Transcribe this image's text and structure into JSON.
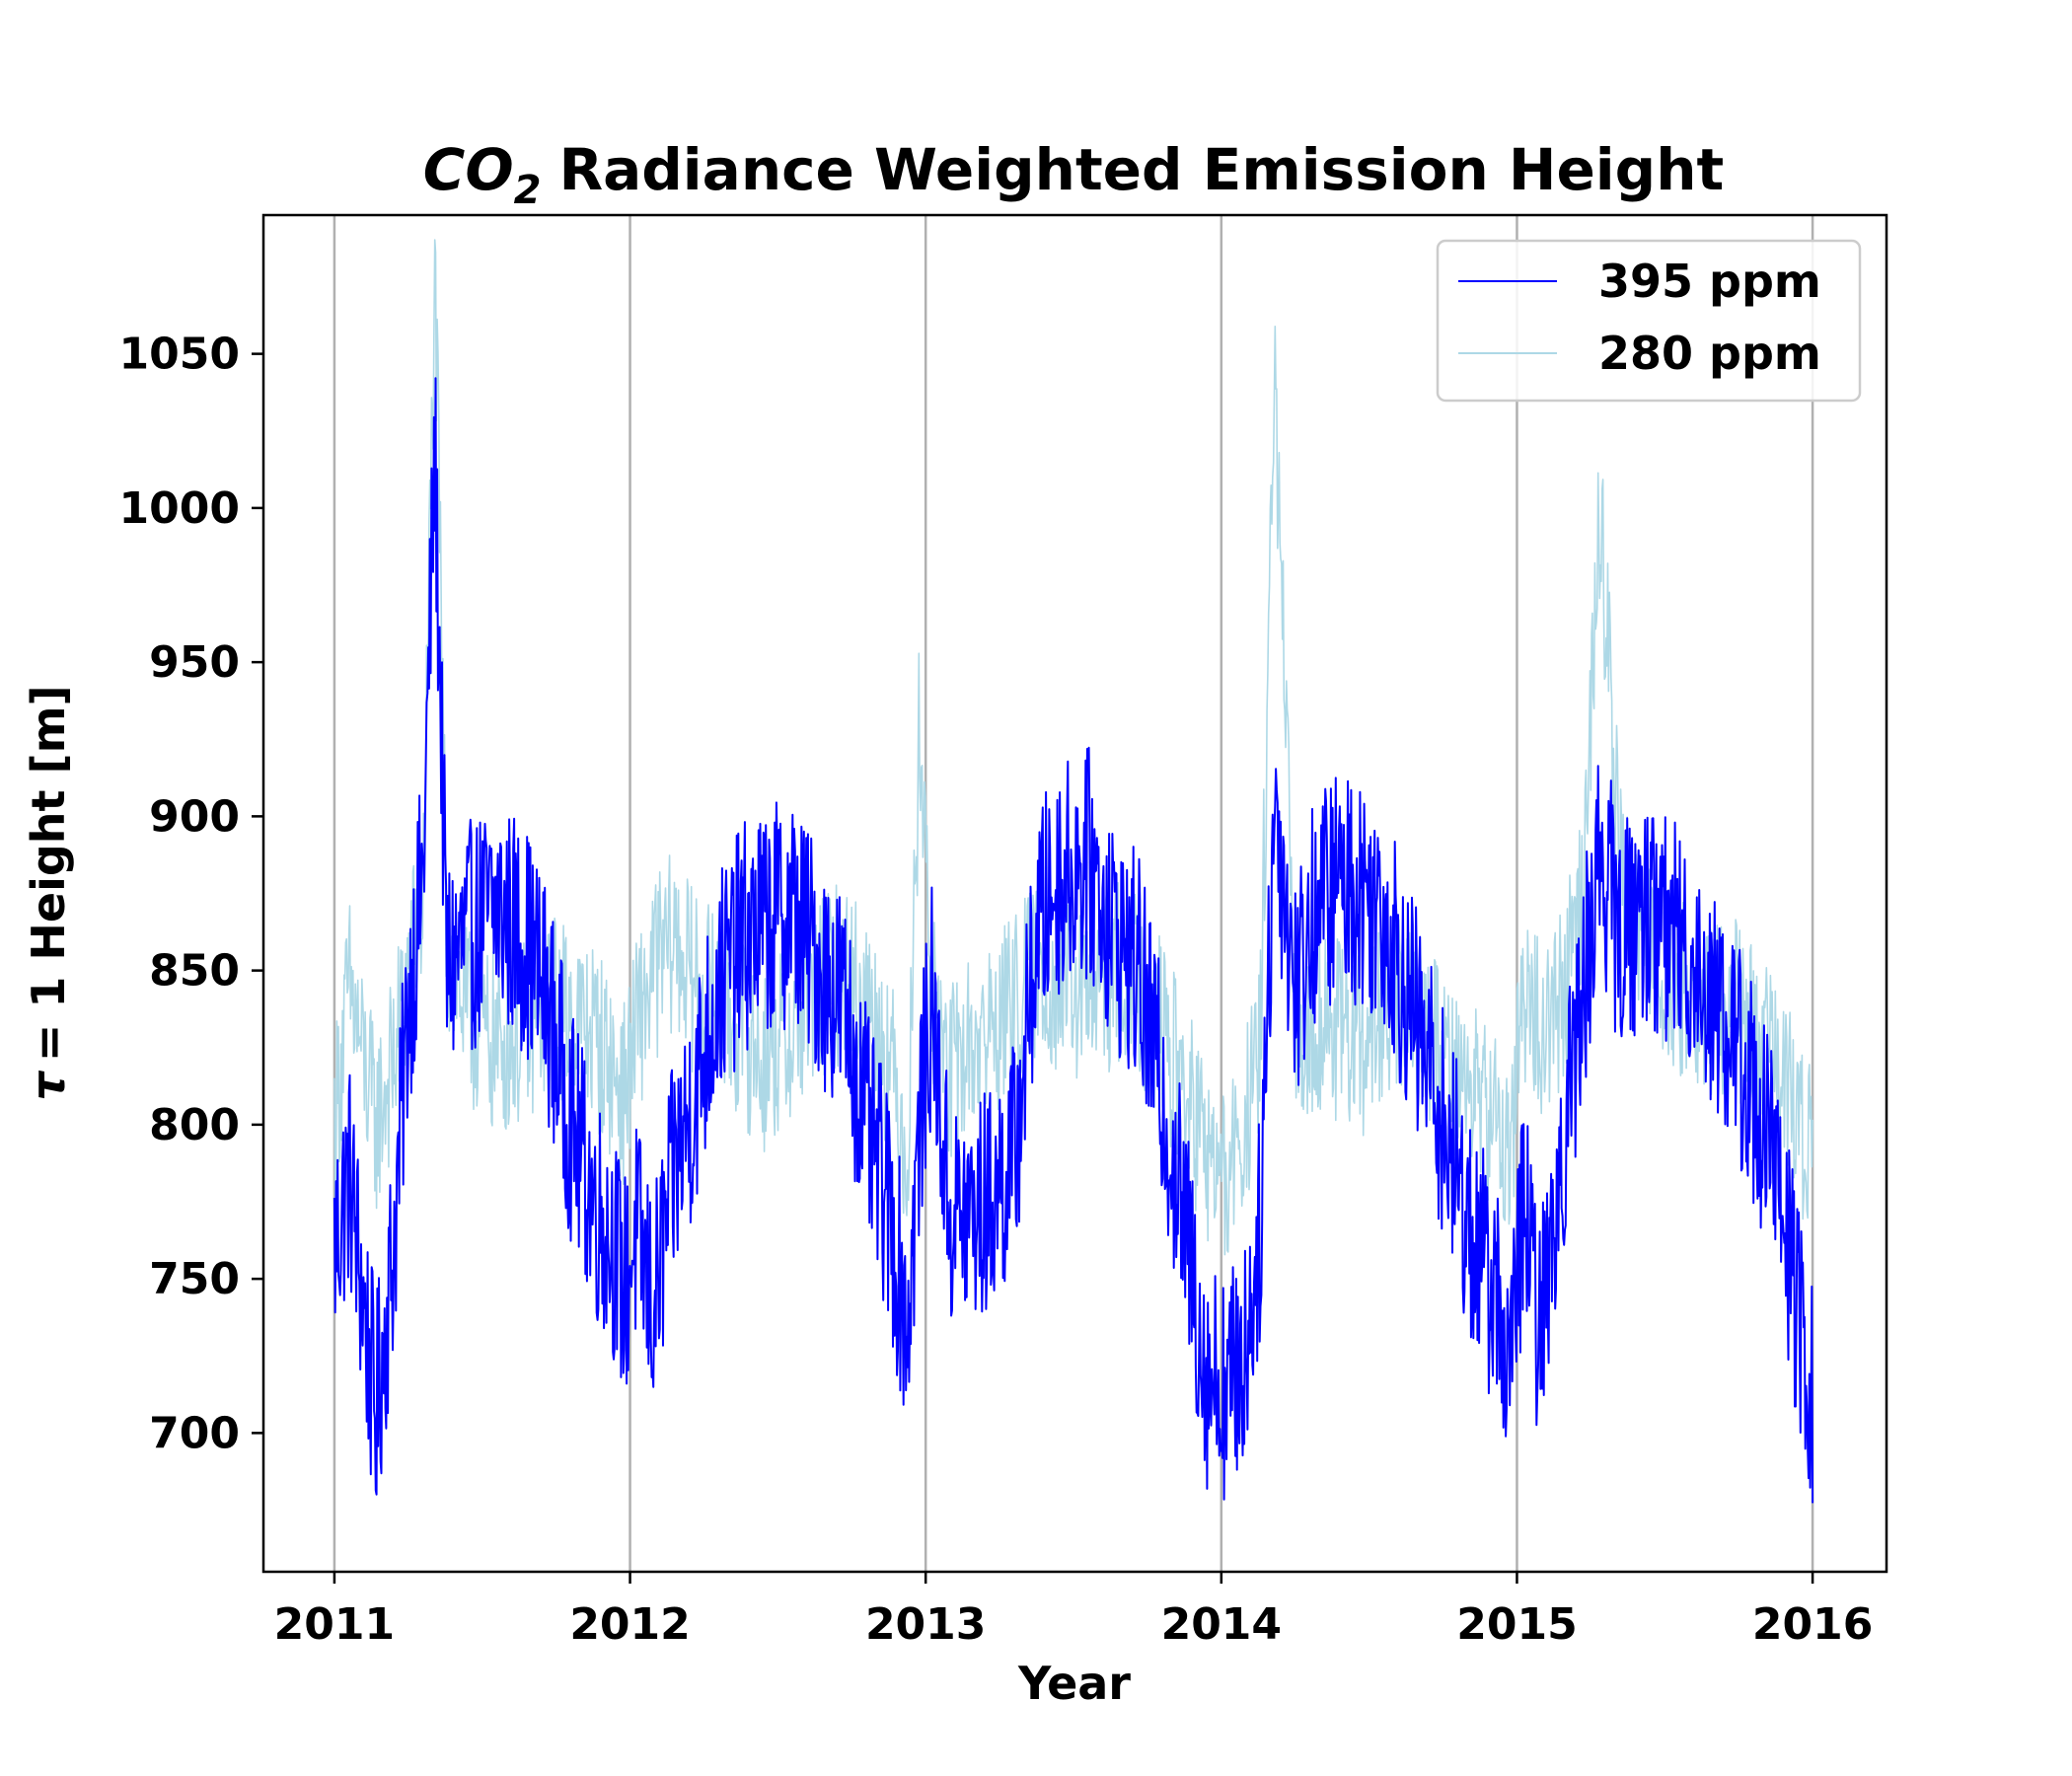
{
  "chart_data": {
    "type": "line",
    "title": "CO2 Radiance Weighted Emission Height",
    "title_parts": {
      "math_main": "CO",
      "math_sub": "2",
      "rest": "Radiance Weighted Emission Height"
    },
    "xlabel": "Year",
    "ylabel": "τ = 1 Height [m]",
    "ylabel_parts": {
      "symbol": "τ",
      "rest": "= 1 Height [m]"
    },
    "xlim": [
      2010.76,
      2016.25
    ],
    "ylim": [
      655,
      1095
    ],
    "x_ticks": [
      "2011",
      "2012",
      "2013",
      "2014",
      "2015",
      "2016"
    ],
    "y_ticks": [
      "700",
      "750",
      "800",
      "850",
      "900",
      "950",
      "1000",
      "1050"
    ],
    "grid": "vertical",
    "legend_position": "upper right",
    "series": [
      {
        "name": "395 ppm",
        "color": "#0000ff",
        "x": [
          2011.0,
          2011.05,
          2011.1,
          2011.14,
          2011.2,
          2011.25,
          2011.3,
          2011.34,
          2011.38,
          2011.45,
          2011.55,
          2011.65,
          2011.72,
          2011.8,
          2011.88,
          2011.95,
          2011.98,
          2012.02,
          2012.08,
          2012.15,
          2012.22,
          2012.3,
          2012.38,
          2012.45,
          2012.55,
          2012.65,
          2012.72,
          2012.8,
          2012.88,
          2012.94,
          2012.98,
          2013.02,
          2013.08,
          2013.15,
          2013.22,
          2013.3,
          2013.38,
          2013.45,
          2013.55,
          2013.65,
          2013.72,
          2013.8,
          2013.88,
          2013.95,
          2014.02,
          2014.08,
          2014.13,
          2014.18,
          2014.25,
          2014.32,
          2014.4,
          2014.48,
          2014.55,
          2014.62,
          2014.7,
          2014.78,
          2014.86,
          2014.93,
          2014.98,
          2015.02,
          2015.08,
          2015.15,
          2015.22,
          2015.28,
          2015.35,
          2015.42,
          2015.5,
          2015.58,
          2015.65,
          2015.72,
          2015.8,
          2015.86,
          2015.92,
          2015.96,
          2016.0
        ],
        "values": [
          760,
          785,
          740,
          705,
          760,
          840,
          880,
          1018,
          850,
          860,
          870,
          860,
          840,
          800,
          775,
          760,
          745,
          765,
          740,
          785,
          810,
          845,
          860,
          865,
          870,
          850,
          840,
          800,
          770,
          735,
          800,
          840,
          770,
          770,
          775,
          790,
          865,
          880,
          885,
          860,
          850,
          810,
          765,
          720,
          715,
          725,
          765,
          905,
          845,
          870,
          880,
          875,
          870,
          845,
          820,
          790,
          760,
          745,
          720,
          775,
          730,
          790,
          840,
          890,
          860,
          870,
          865,
          855,
          845,
          830,
          810,
          790,
          760,
          730,
          710
        ]
      },
      {
        "name": "280 ppm",
        "color": "#add8e6",
        "x": [
          2011.0,
          2011.05,
          2011.1,
          2011.14,
          2011.2,
          2011.25,
          2011.3,
          2011.34,
          2011.38,
          2011.45,
          2011.55,
          2011.65,
          2011.72,
          2011.8,
          2011.88,
          2011.95,
          2011.98,
          2012.02,
          2012.08,
          2012.15,
          2012.22,
          2012.3,
          2012.38,
          2012.45,
          2012.55,
          2012.65,
          2012.72,
          2012.8,
          2012.88,
          2012.94,
          2012.98,
          2013.02,
          2013.08,
          2013.15,
          2013.22,
          2013.3,
          2013.38,
          2013.45,
          2013.55,
          2013.65,
          2013.72,
          2013.8,
          2013.88,
          2013.95,
          2014.02,
          2014.08,
          2014.13,
          2014.18,
          2014.25,
          2014.32,
          2014.4,
          2014.48,
          2014.55,
          2014.62,
          2014.7,
          2014.78,
          2014.86,
          2014.93,
          2014.98,
          2015.02,
          2015.08,
          2015.15,
          2015.22,
          2015.28,
          2015.35,
          2015.42,
          2015.5,
          2015.58,
          2015.65,
          2015.72,
          2015.8,
          2015.86,
          2015.92,
          2015.96,
          2016.0
        ],
        "values": [
          800,
          845,
          820,
          800,
          820,
          850,
          870,
          1078,
          860,
          835,
          825,
          830,
          840,
          835,
          830,
          815,
          810,
          830,
          850,
          860,
          845,
          840,
          830,
          820,
          830,
          845,
          850,
          840,
          820,
          790,
          935,
          840,
          815,
          825,
          830,
          840,
          850,
          845,
          840,
          850,
          845,
          830,
          810,
          790,
          780,
          800,
          820,
          1042,
          830,
          835,
          830,
          825,
          835,
          840,
          830,
          820,
          810,
          800,
          790,
          845,
          830,
          840,
          870,
          999,
          880,
          860,
          850,
          840,
          835,
          840,
          830,
          820,
          810,
          800,
          790
        ]
      }
    ]
  }
}
